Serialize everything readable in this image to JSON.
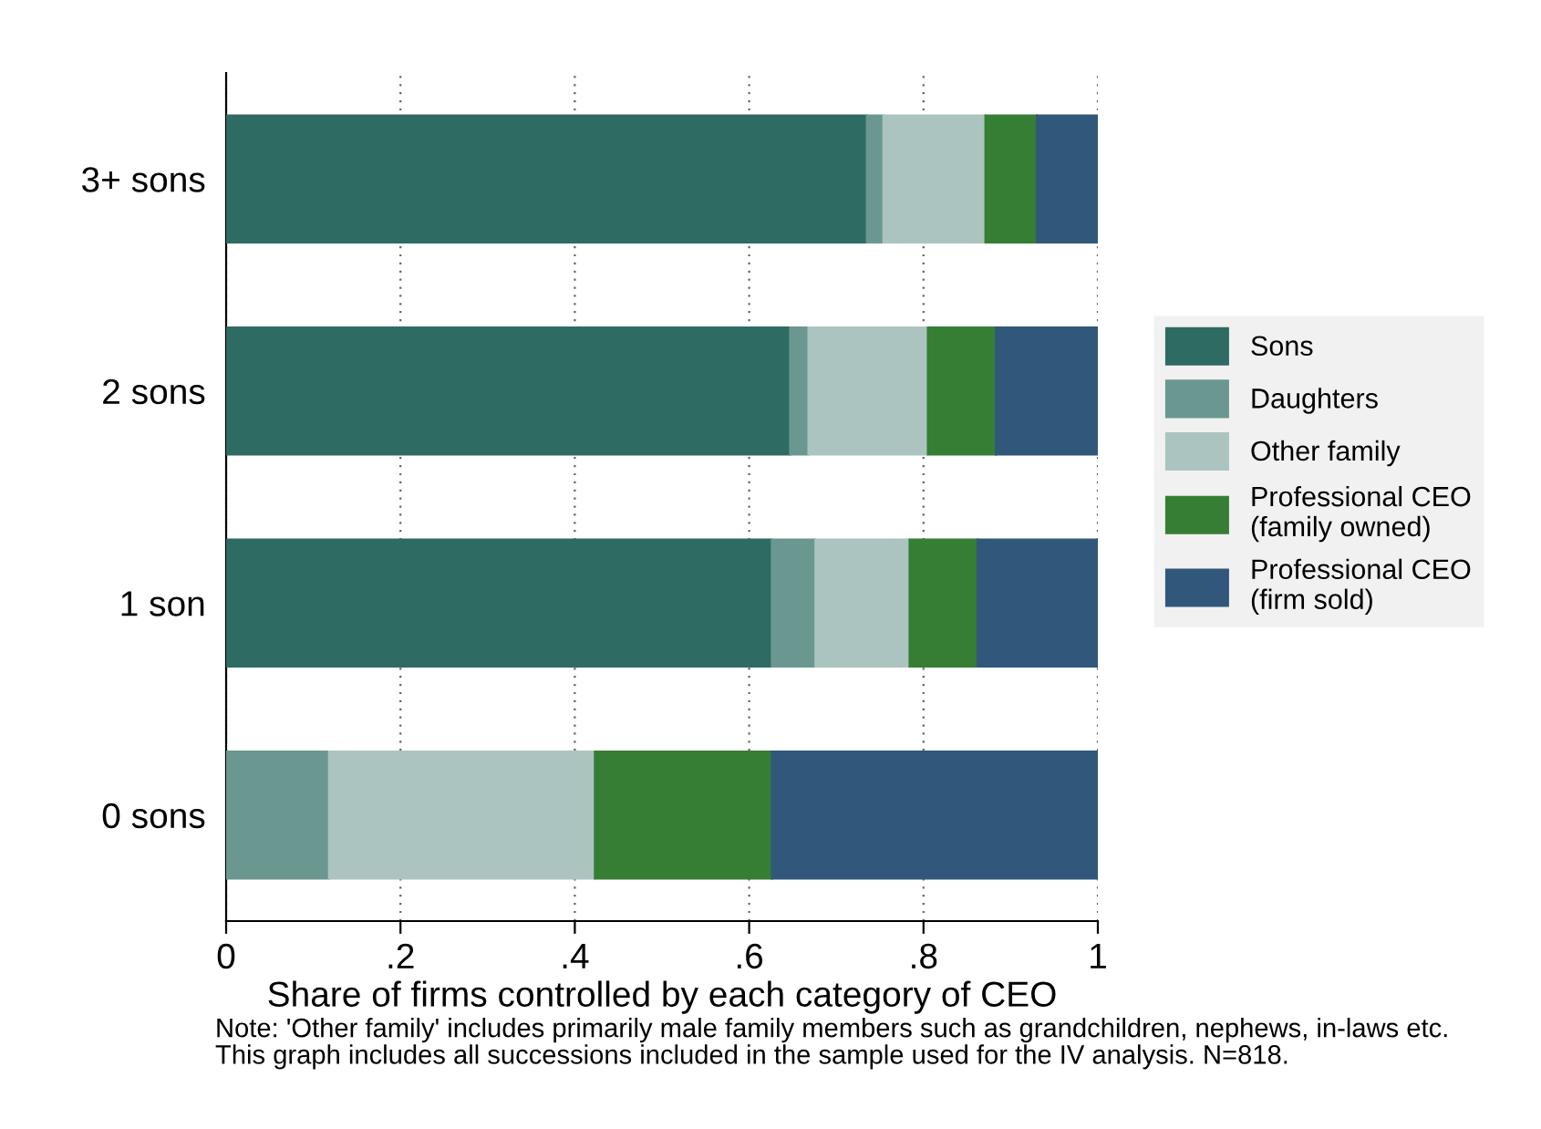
{
  "chart_data": {
    "type": "bar",
    "orientation": "horizontal",
    "stacked": true,
    "categories": [
      "3+ sons",
      "2 sons",
      "1 son",
      "0 sons"
    ],
    "xlabel": "Share of firms controlled by each category of CEO",
    "xlim": [
      0,
      1
    ],
    "xticks": [
      0,
      {
        "value": 0.2,
        "label": ".2"
      },
      {
        "value": 0.4,
        "label": ".4"
      },
      {
        "value": 0.6,
        "label": ".6"
      },
      {
        "value": 0.8,
        "label": ".8"
      },
      1
    ],
    "grid": "x",
    "legend": "right",
    "series": [
      {
        "name": "Sons",
        "color": "#2e6b63",
        "values": [
          0.735,
          0.647,
          0.626,
          0
        ]
      },
      {
        "name": "Daughters",
        "color": "#6a9890",
        "values": [
          0.019,
          0.021,
          0.05,
          0.118
        ]
      },
      {
        "name": "Other family",
        "color": "#abc4c0",
        "values": [
          0.117,
          0.137,
          0.108,
          0.305
        ]
      },
      {
        "name": "Professional CEO\n(family owned)",
        "color": "#367e34",
        "values": [
          0.059,
          0.078,
          0.078,
          0.203
        ]
      },
      {
        "name": "Professional CEO\n(firm sold)",
        "color": "#31587b",
        "values": [
          0.07,
          0.117,
          0.138,
          0.374
        ]
      }
    ],
    "annotations": [
      "Note: 'Other family' includes primarily male family members such as grandchildren, nephews, in-laws etc.\nThis graph includes all successions included in the sample used for the IV analysis. N=818."
    ]
  }
}
